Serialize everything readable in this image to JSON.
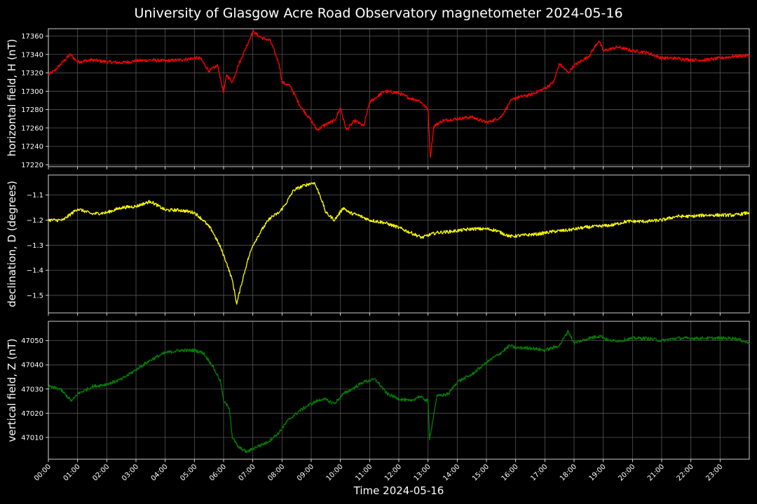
{
  "title": "University of Glasgow Acre Road Observatory magnetometer 2024-05-16",
  "colors": {
    "background": "#000000",
    "grid": "#555555",
    "axis": "#ffffff"
  },
  "chart_data": [
    {
      "type": "line",
      "ylabel": "horizontal field, H (nT)",
      "ylim": [
        17218,
        17368
      ],
      "yticks": [
        17220,
        17240,
        17260,
        17280,
        17300,
        17320,
        17340,
        17360
      ],
      "grid": true,
      "series": [
        {
          "color": "#ff0000",
          "x": [
            0,
            0.2,
            0.5,
            0.75,
            1,
            1.5,
            2,
            2.5,
            3,
            3.5,
            4,
            4.5,
            5,
            5.2,
            5.5,
            5.8,
            6,
            6.1,
            6.3,
            6.5,
            6.8,
            7,
            7.3,
            7.6,
            7.9,
            8,
            8.3,
            8.6,
            9,
            9.2,
            9.5,
            9.8,
            10,
            10.2,
            10.5,
            10.8,
            11,
            11.5,
            12,
            12.4,
            12.7,
            13,
            13.08,
            13.2,
            13.5,
            14,
            14.5,
            15,
            15.2,
            15.5,
            15.8,
            16,
            16.5,
            17,
            17.3,
            17.5,
            17.8,
            18,
            18.5,
            18.85,
            19,
            19.5,
            20,
            20.5,
            21,
            21.5,
            22,
            22.5,
            23,
            23.5,
            24
          ],
          "y": [
            17318,
            17322,
            17332,
            17340,
            17332,
            17334,
            17332,
            17331,
            17333,
            17334,
            17333,
            17334,
            17336,
            17336,
            17322,
            17328,
            17298,
            17318,
            17310,
            17328,
            17350,
            17365,
            17358,
            17355,
            17330,
            17310,
            17305,
            17285,
            17268,
            17258,
            17264,
            17268,
            17282,
            17258,
            17268,
            17262,
            17288,
            17300,
            17298,
            17292,
            17290,
            17280,
            17228,
            17262,
            17268,
            17270,
            17272,
            17266,
            17268,
            17272,
            17288,
            17293,
            17296,
            17303,
            17310,
            17330,
            17320,
            17328,
            17338,
            17355,
            17344,
            17348,
            17344,
            17342,
            17336,
            17336,
            17334,
            17334,
            17336,
            17338,
            17339
          ]
        }
      ]
    },
    {
      "type": "line",
      "ylabel": "declination, D (degrees)",
      "ylim": [
        -1.57,
        -1.02
      ],
      "yticks": [
        -1.5,
        -1.4,
        -1.3,
        -1.2,
        -1.1
      ],
      "yticklabels": [
        "−1.5",
        "−1.4",
        "−1.3",
        "−1.2",
        "−1.1"
      ],
      "grid": true,
      "series": [
        {
          "color": "#ffff00",
          "x": [
            0,
            0.5,
            1,
            1.5,
            2,
            2.5,
            3,
            3.5,
            4,
            4.5,
            5,
            5.3,
            5.6,
            5.9,
            6.1,
            6.3,
            6.45,
            6.6,
            6.8,
            7,
            7.3,
            7.6,
            7.9,
            8.1,
            8.4,
            8.8,
            9.1,
            9.3,
            9.5,
            9.8,
            10.1,
            10.3,
            10.6,
            11,
            11.5,
            12,
            12.4,
            12.8,
            13,
            13.3,
            13.8,
            14.5,
            15,
            15.3,
            15.8,
            16.3,
            16.8,
            17.3,
            17.8,
            18.3,
            18.8,
            19.3,
            19.8,
            20.5,
            21,
            21.5,
            22,
            22.5,
            23,
            23.5,
            24
          ],
          "y": [
            -1.2,
            -1.2,
            -1.155,
            -1.175,
            -1.17,
            -1.15,
            -1.145,
            -1.125,
            -1.16,
            -1.16,
            -1.17,
            -1.2,
            -1.24,
            -1.31,
            -1.37,
            -1.44,
            -1.535,
            -1.46,
            -1.37,
            -1.3,
            -1.24,
            -1.19,
            -1.17,
            -1.14,
            -1.08,
            -1.06,
            -1.05,
            -1.1,
            -1.17,
            -1.2,
            -1.15,
            -1.17,
            -1.18,
            -1.2,
            -1.21,
            -1.23,
            -1.25,
            -1.27,
            -1.26,
            -1.25,
            -1.245,
            -1.235,
            -1.235,
            -1.24,
            -1.265,
            -1.26,
            -1.255,
            -1.245,
            -1.24,
            -1.23,
            -1.225,
            -1.22,
            -1.205,
            -1.205,
            -1.2,
            -1.185,
            -1.185,
            -1.18,
            -1.18,
            -1.18,
            -1.17
          ]
        }
      ]
    },
    {
      "type": "line",
      "ylabel": "vertical field, Z (nT)",
      "ylim": [
        47001,
        47058
      ],
      "yticks": [
        47010,
        47020,
        47030,
        47040,
        47050
      ],
      "grid": true,
      "series": [
        {
          "color": "#008000",
          "x": [
            0,
            0.4,
            0.8,
            1,
            1.5,
            2,
            2.5,
            3,
            3.5,
            4,
            4.5,
            5,
            5.3,
            5.6,
            5.9,
            6,
            6.2,
            6.3,
            6.5,
            6.8,
            7.1,
            7.5,
            7.9,
            8.2,
            8.6,
            9,
            9.4,
            9.8,
            10.1,
            10.4,
            10.8,
            11.2,
            11.6,
            12,
            12.4,
            12.7,
            13,
            13.05,
            13.3,
            13.7,
            14,
            14.5,
            15,
            15.5,
            15.8,
            16,
            16.5,
            17,
            17.5,
            17.8,
            18,
            18.5,
            18.9,
            19.2,
            19.6,
            20,
            20.5,
            21,
            21.5,
            22,
            22.5,
            23,
            23.5,
            24
          ],
          "y": [
            47031,
            47030,
            47025,
            47028,
            47031,
            47032,
            47034,
            47038,
            47042,
            47045,
            47046,
            47046,
            47045,
            47040,
            47033,
            47025,
            47022,
            47010,
            47006,
            47004,
            47006,
            47008,
            47012,
            47017,
            47021,
            47024,
            47026,
            47024,
            47028,
            47030,
            47033,
            47034,
            47028,
            47026,
            47025,
            47027,
            47025,
            47009,
            47027,
            47028,
            47033,
            47036,
            47041,
            47045,
            47048,
            47047,
            47047,
            47046,
            47048,
            47054,
            47049,
            47051,
            47052,
            47050,
            47050,
            47051,
            47051,
            47050,
            47051,
            47051,
            47051,
            47051,
            47051,
            47049
          ]
        }
      ]
    }
  ],
  "shared_x": {
    "label": "Time 2024-05-16",
    "xlim": [
      0,
      24
    ],
    "ticks": [
      0,
      1,
      2,
      3,
      4,
      5,
      6,
      7,
      8,
      9,
      10,
      11,
      12,
      13,
      14,
      15,
      16,
      17,
      18,
      19,
      20,
      21,
      22,
      23
    ],
    "ticklabels": [
      "00:00",
      "01:00",
      "02:00",
      "03:00",
      "04:00",
      "05:00",
      "06:00",
      "07:00",
      "08:00",
      "09:00",
      "10:00",
      "11:00",
      "12:00",
      "13:00",
      "14:00",
      "15:00",
      "16:00",
      "17:00",
      "18:00",
      "19:00",
      "20:00",
      "21:00",
      "22:00",
      "23:00"
    ]
  }
}
